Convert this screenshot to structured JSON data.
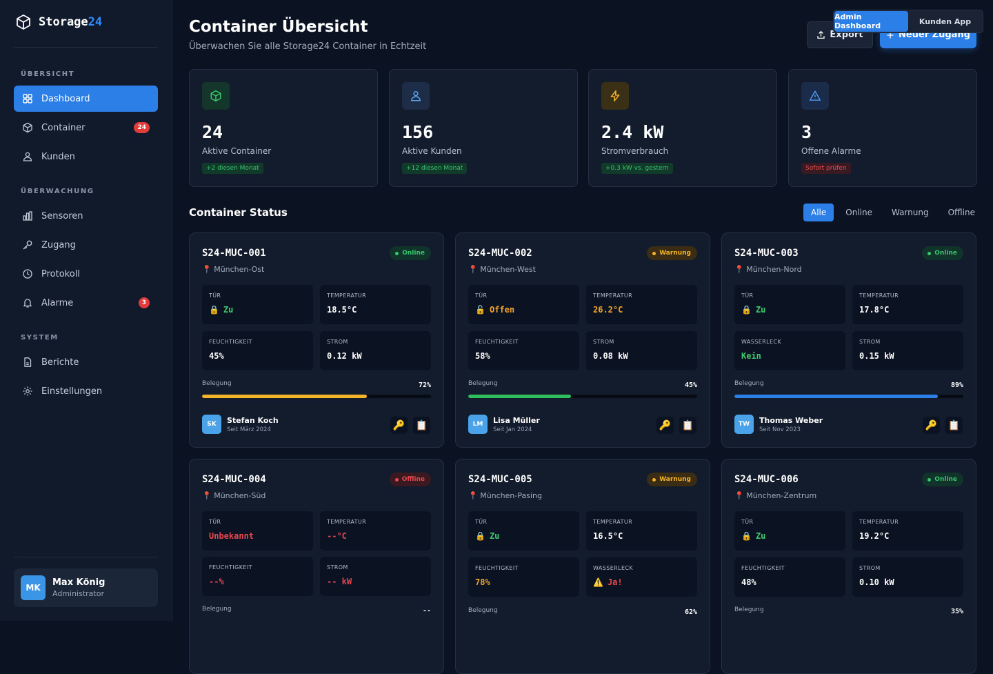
{
  "app": {
    "name_a": "Storage",
    "name_b": "24"
  },
  "sidebar": {
    "sections": [
      "ÜBERSICHT",
      "ÜBERWACHUNG",
      "SYSTEM"
    ],
    "items": [
      {
        "label": "Dashboard",
        "icon": "grid-icon"
      },
      {
        "label": "Container",
        "icon": "box-icon",
        "badge": "24"
      },
      {
        "label": "Kunden",
        "icon": "users-icon"
      },
      {
        "label": "Sensoren",
        "icon": "chart-icon"
      },
      {
        "label": "Zugang",
        "icon": "key-icon"
      },
      {
        "label": "Protokoll",
        "icon": "clock-icon"
      },
      {
        "label": "Alarme",
        "icon": "bell-icon",
        "badge": "3"
      },
      {
        "label": "Berichte",
        "icon": "document-icon"
      },
      {
        "label": "Einstellungen",
        "icon": "gear-icon"
      }
    ],
    "user": {
      "initials": "MK",
      "name": "Max König",
      "role": "Administrator"
    }
  },
  "header": {
    "title": "Container Übersicht",
    "subtitle": "Überwachen Sie alle Storage24 Container in Echtzeit",
    "export_label": "Export",
    "new_label": "Neuer Zugang"
  },
  "view_switch": {
    "admin": "Admin Dashboard",
    "customer": "Kunden App"
  },
  "stats": [
    {
      "value": "24",
      "label": "Aktive Container",
      "tag": "+2 diesen Monat",
      "color": "#3ec96e"
    },
    {
      "value": "156",
      "label": "Aktive Kunden",
      "tag": "+12 diesen Monat",
      "color": "#5aa8f0"
    },
    {
      "value": "2.4 kW",
      "label": "Stromverbrauch",
      "tag": "+0.3 kW vs. gestern",
      "color": "#f4b429"
    },
    {
      "value": "3",
      "label": "Offene Alarme",
      "tag": "Sofort prüfen",
      "color": "#4a9af5"
    }
  ],
  "status": {
    "title": "Container Status",
    "filters": [
      "Alle",
      "Online",
      "Warnung",
      "Offline"
    ]
  },
  "containers": [
    {
      "id": "S24-MUC-001",
      "location": "München-Ost",
      "status": "Online",
      "m1_label": "TÜR",
      "m1_value": "Zu",
      "m2_label": "TEMPERATUR",
      "m2_value": "18.5°C",
      "m3_label": "FEUCHTIGKEIT",
      "m3_value": "45%",
      "m4_label": "STROM",
      "m4_value": "0.12 kW",
      "occ_label": "Belegung",
      "occupancy_pct": "72%",
      "occupancy": 72,
      "bar_color": "#f4b429",
      "customer_initials": "SK",
      "customer": "Stefan Koch",
      "since": "Seit März 2024"
    },
    {
      "id": "S24-MUC-002",
      "location": "München-West",
      "status": "Warnung",
      "m1_label": "TÜR",
      "m1_value": "Offen",
      "m2_label": "TEMPERATUR",
      "m2_value": "26.2°C",
      "m3_label": "FEUCHTIGKEIT",
      "m3_value": "58%",
      "m4_label": "STROM",
      "m4_value": "0.08 kW",
      "occ_label": "Belegung",
      "occupancy_pct": "45%",
      "occupancy": 45,
      "bar_color": "#2fbf5e",
      "customer_initials": "LM",
      "customer": "Lisa Müller",
      "since": "Seit Jan 2024"
    },
    {
      "id": "S24-MUC-003",
      "location": "München-Nord",
      "status": "Online",
      "m1_label": "TÜR",
      "m1_value": "Zu",
      "m2_label": "TEMPERATUR",
      "m2_value": "17.8°C",
      "m3_label": "WASSERLECK",
      "m3_value": "Kein",
      "m4_label": "STROM",
      "m4_value": "0.15 kW",
      "occ_label": "Belegung",
      "occupancy_pct": "89%",
      "occupancy": 89,
      "bar_color": "#2b7fe6",
      "customer_initials": "TW",
      "customer": "Thomas Weber",
      "since": "Seit Nov 2023"
    },
    {
      "id": "S24-MUC-004",
      "location": "München-Süd",
      "status": "Offline",
      "m1_label": "TÜR",
      "m1_value": "Unbekannt",
      "m2_label": "TEMPERATUR",
      "m2_value": "--°C",
      "m3_label": "FEUCHTIGKEIT",
      "m3_value": "--%",
      "m4_label": "STROM",
      "m4_value": "-- kW",
      "occ_label": "Belegung",
      "occupancy_pct": "--"
    },
    {
      "id": "S24-MUC-005",
      "location": "München-Pasing",
      "status": "Warnung",
      "m1_label": "TÜR",
      "m1_value": "Zu",
      "m2_label": "TEMPERATUR",
      "m2_value": "16.5°C",
      "m3_label": "FEUCHTIGKEIT",
      "m3_value": "78%",
      "m4_label": "WASSERLECK",
      "m4_value": "Ja!",
      "occ_label": "Belegung",
      "occupancy_pct": "62%"
    },
    {
      "id": "S24-MUC-006",
      "location": "München-Zentrum",
      "status": "Online",
      "m1_label": "TÜR",
      "m1_value": "Zu",
      "m2_label": "TEMPERATUR",
      "m2_value": "19.2°C",
      "m3_label": "FEUCHTIGKEIT",
      "m3_value": "48%",
      "m4_label": "STROM",
      "m4_value": "0.10 kW",
      "occ_label": "Belegung",
      "occupancy_pct": "35%"
    }
  ]
}
